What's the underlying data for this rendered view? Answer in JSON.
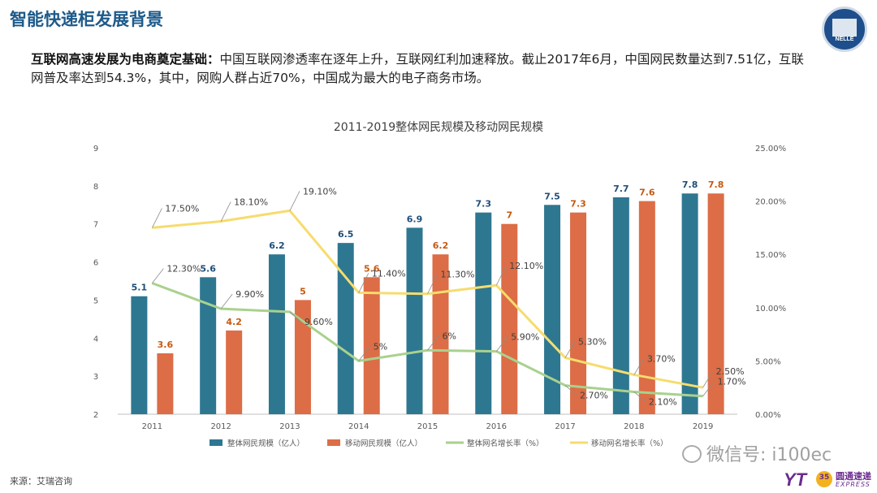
{
  "page": {
    "title": "智能快递柜发展背景",
    "intro_bold": "互联网高速发展为电商奠定基础：",
    "intro_text": "中国互联网渗透率在逐年上升，互联网红利加速释放。截止2017年6月，中国网民数量达到7.51亿，互联网普及率达到54.3%，其中，网购人群占近70%，中国成为最大的电子商务市场。",
    "source": "来源：艾瑞咨询",
    "watermark": "微信号: i100ec",
    "logo_text": "NELLE",
    "brand_mark": "YT",
    "brand_badge": "35",
    "brand_cn": "圆通速递",
    "brand_en": "EXPRESS"
  },
  "colors": {
    "bar1": "#2e7791",
    "bar2": "#dc6d46",
    "line1": "#a9d18e",
    "line2": "#f6dc6e"
  },
  "chart_data": {
    "type": "bar",
    "title": "2011-2019整体网民规模及移动网民规模",
    "categories": [
      "2011",
      "2012",
      "2013",
      "2014",
      "2015",
      "2016",
      "2017",
      "2018",
      "2019"
    ],
    "y_left": {
      "min": 2,
      "max": 9,
      "ticks": [
        "2",
        "3",
        "4",
        "5",
        "6",
        "7",
        "8",
        "9"
      ]
    },
    "y_right": {
      "min": 0,
      "max": 25,
      "ticks": [
        "0.00%",
        "5.00%",
        "10.00%",
        "15.00%",
        "20.00%",
        "25.00%"
      ]
    },
    "series": [
      {
        "name": "整体网民规模（亿人）",
        "kind": "bar",
        "axis": "left",
        "values": [
          5.1,
          5.6,
          6.2,
          6.5,
          6.9,
          7.3,
          7.5,
          7.7,
          7.8
        ],
        "labels": [
          "5.1",
          "5.6",
          "6.2",
          "6.5",
          "6.9",
          "7.3",
          "7.5",
          "7.7",
          "7.8"
        ]
      },
      {
        "name": "移动网民规模（亿人）",
        "kind": "bar",
        "axis": "left",
        "values": [
          3.6,
          4.2,
          5,
          5.6,
          6.2,
          7,
          7.3,
          7.6,
          7.8
        ],
        "labels": [
          "3.6",
          "4.2",
          "5",
          "5.6",
          "6.2",
          "7",
          "7.3",
          "7.6",
          "7.8"
        ]
      },
      {
        "name": "整体网名增长率（%）",
        "kind": "line",
        "axis": "right",
        "values": [
          12.3,
          9.9,
          9.6,
          5,
          6,
          5.9,
          2.7,
          2.1,
          1.7
        ],
        "labels": [
          "12.30%",
          "9.90%",
          "9.60%",
          "5%",
          "6%",
          "5.90%",
          "2.70%",
          "2.10%",
          "1.70%"
        ]
      },
      {
        "name": "移动网名增长率（%）",
        "kind": "line",
        "axis": "right",
        "values": [
          17.5,
          18.1,
          19.1,
          11.4,
          11.3,
          12.1,
          5.3,
          3.7,
          2.5
        ],
        "labels": [
          "17.50%",
          "18.10%",
          "19.10%",
          "11.40%",
          "11.30%",
          "12.10%",
          "5.30%",
          "3.70%",
          "2.50%"
        ]
      }
    ],
    "legend_position": "bottom"
  }
}
